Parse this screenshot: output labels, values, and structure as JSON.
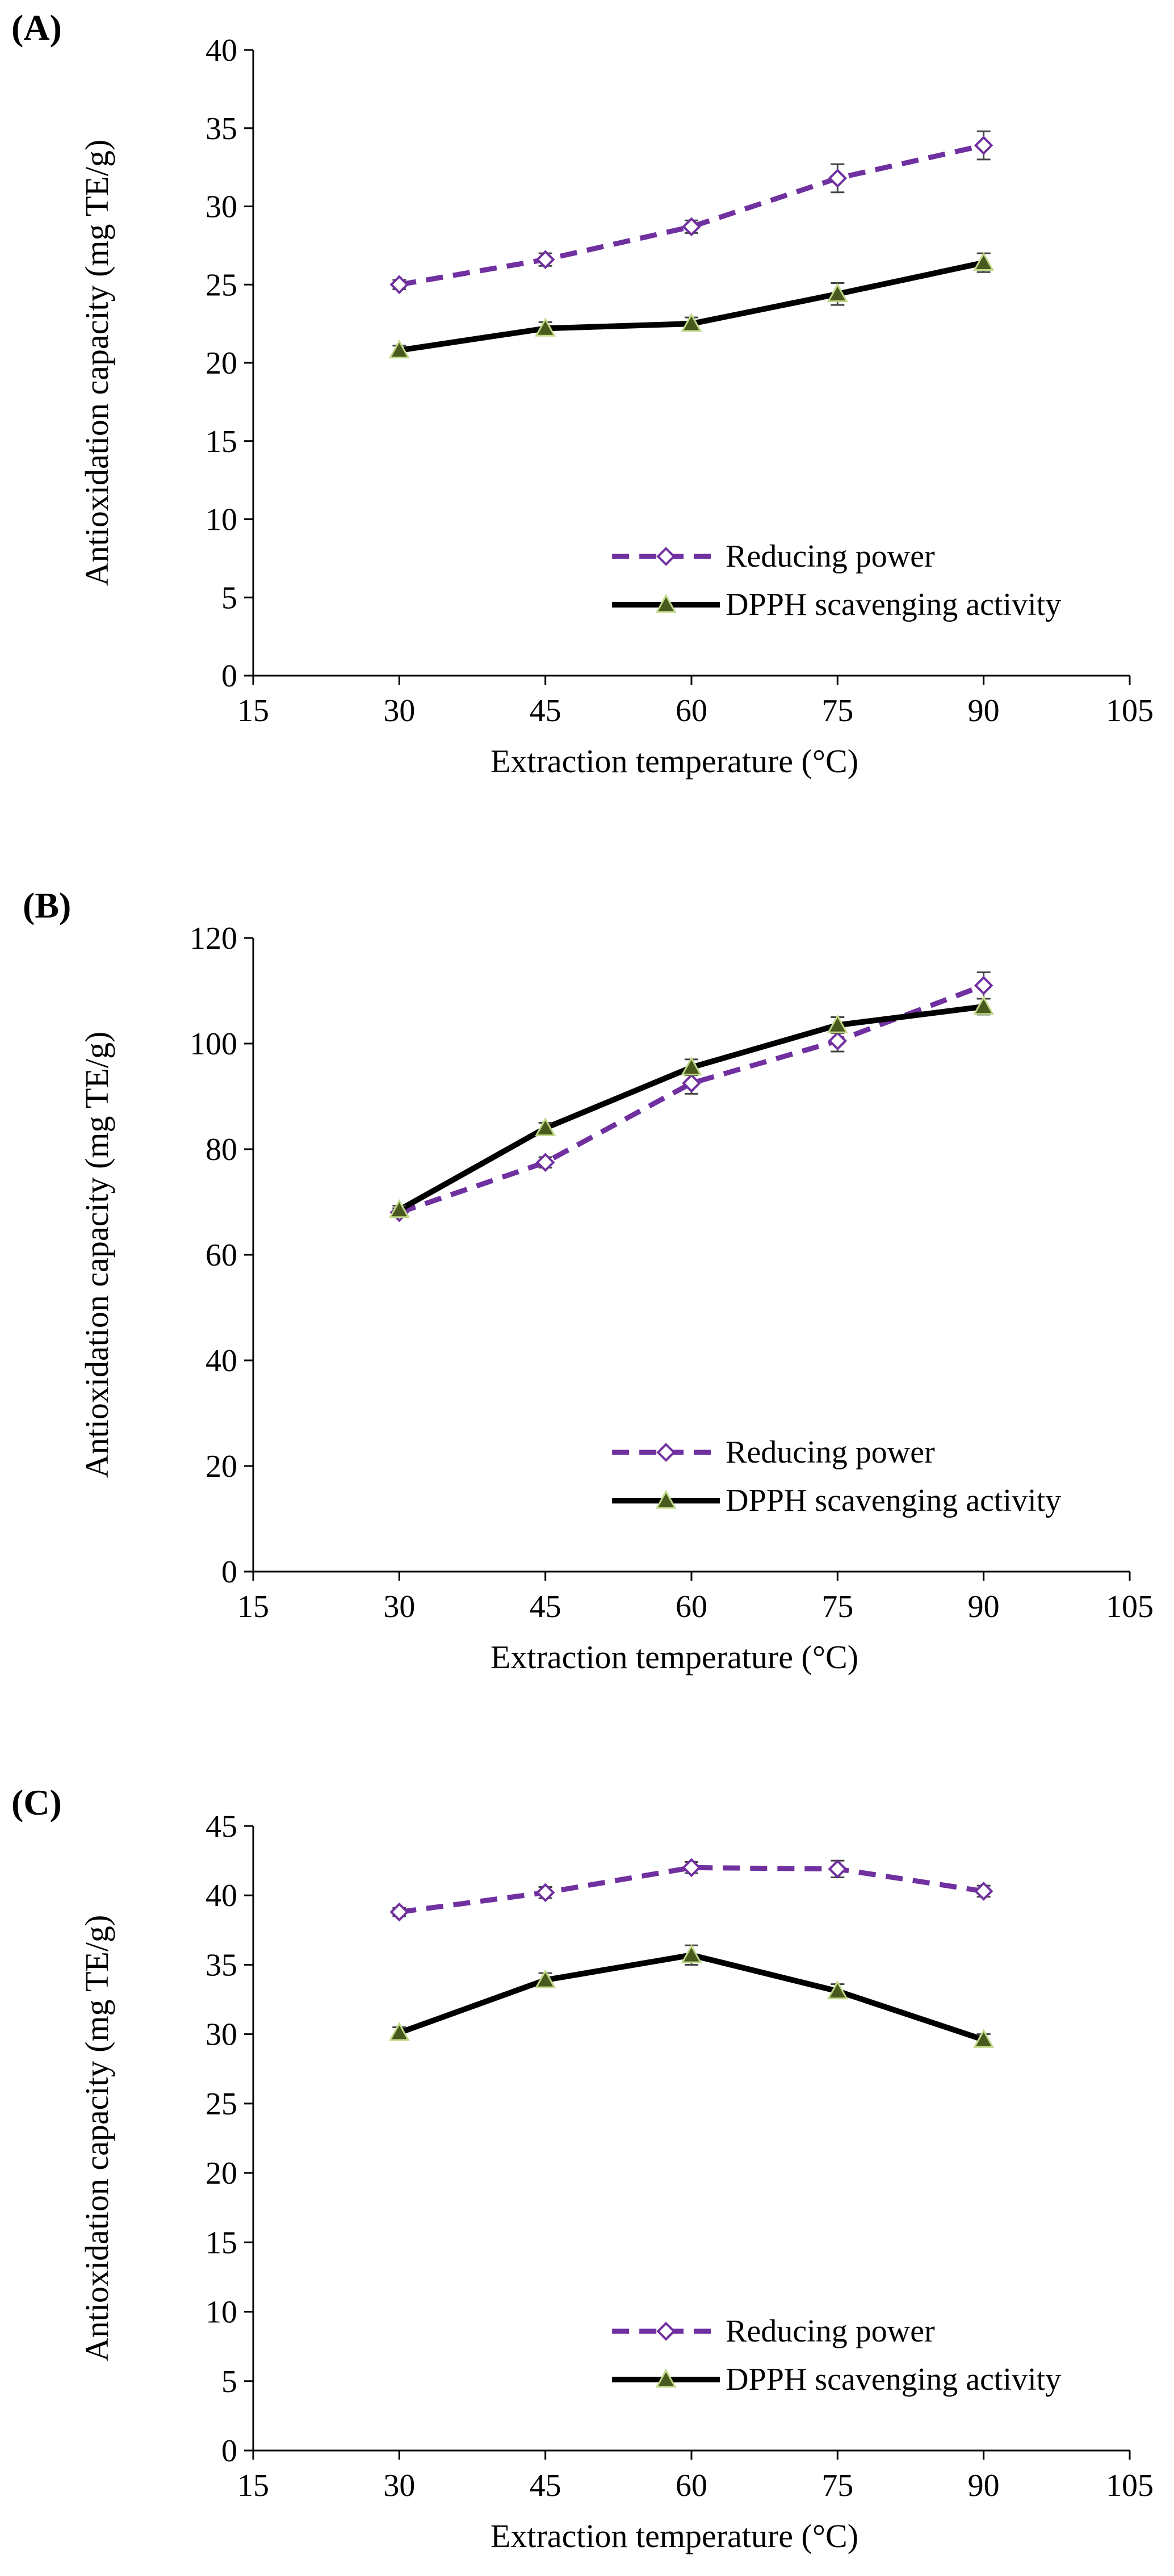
{
  "chart_data": [
    {
      "type": "line",
      "panel_label": "(A)",
      "title": "",
      "xlabel": "Extraction temperature (°C)",
      "ylabel": "Antioxidation capacity (mg TE/g)",
      "xlim": [
        15,
        105
      ],
      "ylim": [
        0,
        40
      ],
      "xticks": [
        15,
        30,
        45,
        60,
        75,
        90,
        105
      ],
      "xtick_labels": [
        "15",
        "30",
        "45",
        "60",
        "75",
        "90",
        "105"
      ],
      "yticks": [
        0,
        5,
        10,
        15,
        20,
        25,
        30,
        35,
        40
      ],
      "ytick_labels": [
        "0",
        "5",
        "10",
        "15",
        "20",
        "25",
        "30",
        "35",
        "40"
      ],
      "grid": false,
      "legend_position": "bottom-right",
      "x": [
        30,
        45,
        60,
        75,
        90
      ],
      "series": [
        {
          "name": "Reducing power",
          "values": [
            25.0,
            26.6,
            28.7,
            31.8,
            33.9
          ],
          "errors": [
            0.3,
            0.4,
            0.4,
            0.9,
            0.9
          ],
          "color": "#7030a0",
          "dashed": true,
          "marker": "diamond-open"
        },
        {
          "name": "DPPH scavenging activity",
          "values": [
            20.8,
            22.2,
            22.5,
            24.4,
            26.4
          ],
          "errors": [
            0.3,
            0.4,
            0.4,
            0.7,
            0.6
          ],
          "color": "#000000",
          "dashed": false,
          "marker": "triangle"
        }
      ]
    },
    {
      "type": "line",
      "panel_label": "(B)",
      "title": "",
      "xlabel": "Extraction temperature (°C)",
      "ylabel": "Antioxidation capacity (mg TE/g)",
      "xlim": [
        15,
        105
      ],
      "ylim": [
        0,
        120
      ],
      "xticks": [
        15,
        30,
        45,
        60,
        75,
        90,
        105
      ],
      "xtick_labels": [
        "15",
        "30",
        "45",
        "60",
        "75",
        "90",
        "105"
      ],
      "yticks": [
        0,
        20,
        40,
        60,
        80,
        100,
        120
      ],
      "ytick_labels": [
        "0",
        "20",
        "40",
        "60",
        "80",
        "100",
        "120"
      ],
      "grid": false,
      "legend_position": "bottom-right",
      "x": [
        30,
        45,
        60,
        75,
        90
      ],
      "series": [
        {
          "name": "Reducing power",
          "values": [
            68.0,
            77.5,
            92.5,
            100.5,
            111.0
          ],
          "errors": [
            0.8,
            1.0,
            2.0,
            2.0,
            2.5
          ],
          "color": "#7030a0",
          "dashed": true,
          "marker": "diamond-open"
        },
        {
          "name": "DPPH scavenging activity",
          "values": [
            68.5,
            84.0,
            95.5,
            103.5,
            107.0
          ],
          "errors": [
            0.8,
            1.0,
            1.5,
            1.5,
            1.5
          ],
          "color": "#000000",
          "dashed": false,
          "marker": "triangle"
        }
      ]
    },
    {
      "type": "line",
      "panel_label": "(C)",
      "title": "",
      "xlabel": "Extraction temperature (°C)",
      "ylabel": "Antioxidation capacity (mg TE/g)",
      "xlim": [
        15,
        105
      ],
      "ylim": [
        0,
        45
      ],
      "xticks": [
        15,
        30,
        45,
        60,
        75,
        90,
        105
      ],
      "xtick_labels": [
        "15",
        "30",
        "45",
        "60",
        "75",
        "90",
        "105"
      ],
      "yticks": [
        0,
        5,
        10,
        15,
        20,
        25,
        30,
        35,
        40,
        45
      ],
      "ytick_labels": [
        "0",
        "5",
        "10",
        "15",
        "20",
        "25",
        "30",
        "35",
        "40",
        "45"
      ],
      "grid": false,
      "legend_position": "bottom-right",
      "x": [
        30,
        45,
        60,
        75,
        90
      ],
      "series": [
        {
          "name": "Reducing power",
          "values": [
            38.8,
            40.2,
            42.0,
            41.9,
            40.3
          ],
          "errors": [
            0.3,
            0.4,
            0.4,
            0.6,
            0.4
          ],
          "color": "#7030a0",
          "dashed": true,
          "marker": "diamond-open"
        },
        {
          "name": "DPPH scavenging activity",
          "values": [
            30.1,
            33.9,
            35.7,
            33.1,
            29.6
          ],
          "errors": [
            0.4,
            0.5,
            0.7,
            0.5,
            0.4
          ],
          "color": "#000000",
          "dashed": false,
          "marker": "triangle"
        }
      ]
    }
  ]
}
